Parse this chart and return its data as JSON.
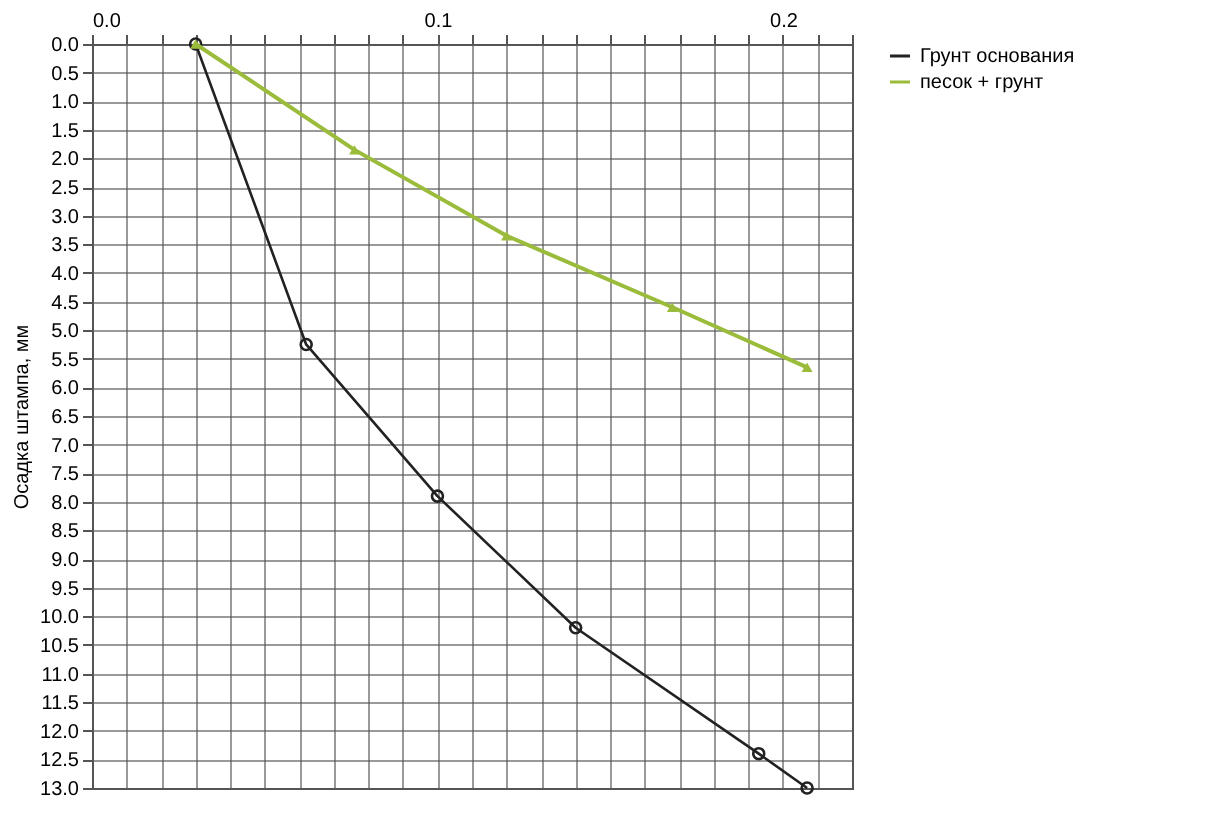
{
  "chart_data": {
    "type": "line",
    "ylabel": "Осадка штампа, мм",
    "xlim": [
      0,
      0.22
    ],
    "xticks": [
      {
        "value": 0,
        "label": "0.0"
      },
      {
        "value": 0.01,
        "label": null
      },
      {
        "value": 0.02,
        "label": null
      },
      {
        "value": 0.03,
        "label": null
      },
      {
        "value": 0.04,
        "label": null
      },
      {
        "value": 0.05,
        "label": null
      },
      {
        "value": 0.06,
        "label": null
      },
      {
        "value": 0.07,
        "label": null
      },
      {
        "value": 0.08,
        "label": null
      },
      {
        "value": 0.09,
        "label": null
      },
      0.1,
      {
        "value": 0.11,
        "label": null
      },
      {
        "value": 0.12,
        "label": null
      },
      {
        "value": 0.13,
        "label": null
      },
      {
        "value": 0.14,
        "label": null
      },
      {
        "value": 0.15,
        "label": null
      },
      {
        "value": 0.16,
        "label": null
      },
      {
        "value": 0.17,
        "label": null
      },
      {
        "value": 0.18,
        "label": null
      },
      {
        "value": 0.19,
        "label": null
      },
      0.2,
      {
        "value": 0.21,
        "label": null
      },
      {
        "value": 0.22,
        "label": null
      }
    ],
    "ylim": [
      13,
      0
    ],
    "yticks": [
      {
        "value": 0,
        "label": "0.0"
      },
      0.5,
      {
        "value": 1,
        "label": "1.0"
      },
      1.5,
      {
        "value": 2,
        "label": "2.0"
      },
      2.5,
      {
        "value": 3,
        "label": "3.0"
      },
      3.5,
      {
        "value": 4,
        "label": "4.0"
      },
      4.5,
      {
        "value": 5,
        "label": "5.0"
      },
      5.5,
      {
        "value": 6,
        "label": "6.0"
      },
      6.5,
      {
        "value": 7,
        "label": "7.0"
      },
      7.5,
      {
        "value": 8,
        "label": "8.0"
      },
      8.5,
      {
        "value": 9,
        "label": "9.0"
      },
      9.5,
      {
        "value": 10,
        "label": "10.0"
      },
      10.5,
      {
        "value": 11,
        "label": "11.0"
      },
      11.5,
      {
        "value": 12,
        "label": "12.0"
      },
      12.5,
      {
        "value": 13,
        "label": "13.0"
      }
    ],
    "grid": true,
    "legend": "right",
    "series": [
      {
        "name": "Грунт основания",
        "color": "#222222",
        "marker": "circle",
        "x": [
          0.03,
          0.062,
          0.1,
          0.14,
          0.193,
          0.207
        ],
        "values": [
          0,
          5.25,
          7.9,
          10.2,
          12.4,
          13.0
        ]
      },
      {
        "name": "песок + грунт",
        "color": "#9bbb3b",
        "marker": "triangle",
        "x": [
          0.03,
          0.076,
          0.12,
          0.168,
          0.207
        ],
        "values": [
          0,
          1.85,
          3.35,
          4.6,
          5.65
        ]
      }
    ]
  }
}
